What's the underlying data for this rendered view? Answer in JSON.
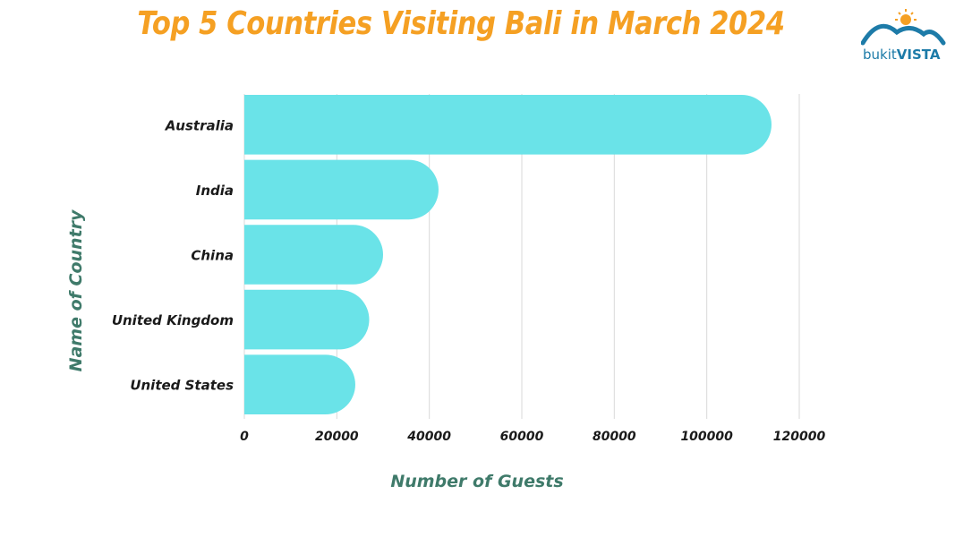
{
  "page": {
    "title": "Top 5 Countries Visiting Bali in March 2024",
    "title_color": "#f5a023",
    "logo": {
      "text_bukit": "bukit",
      "text_vista": "VISTA",
      "icon": "mountain-sun-logo"
    }
  },
  "colors": {
    "bar": "#6ae3e8",
    "grid": "#d9d9d9",
    "axis_title": "#3f7a6a"
  },
  "chart_data": {
    "type": "bar",
    "orientation": "horizontal",
    "title": "Top 5 Countries Visiting Bali in March 2024",
    "xlabel": "Number of Guests",
    "ylabel": "Name of Country",
    "categories": [
      "Australia",
      "India",
      "China",
      "United Kingdom",
      "United States"
    ],
    "values": [
      114000,
      42000,
      30000,
      27000,
      24000
    ],
    "xlim": [
      0,
      120000
    ],
    "xticks": [
      0,
      20000,
      40000,
      60000,
      80000,
      100000,
      120000
    ],
    "xtick_labels": [
      "0",
      "20000",
      "40000",
      "60000",
      "80000",
      "100000",
      "120000"
    ],
    "grid": true,
    "legend": "none"
  }
}
